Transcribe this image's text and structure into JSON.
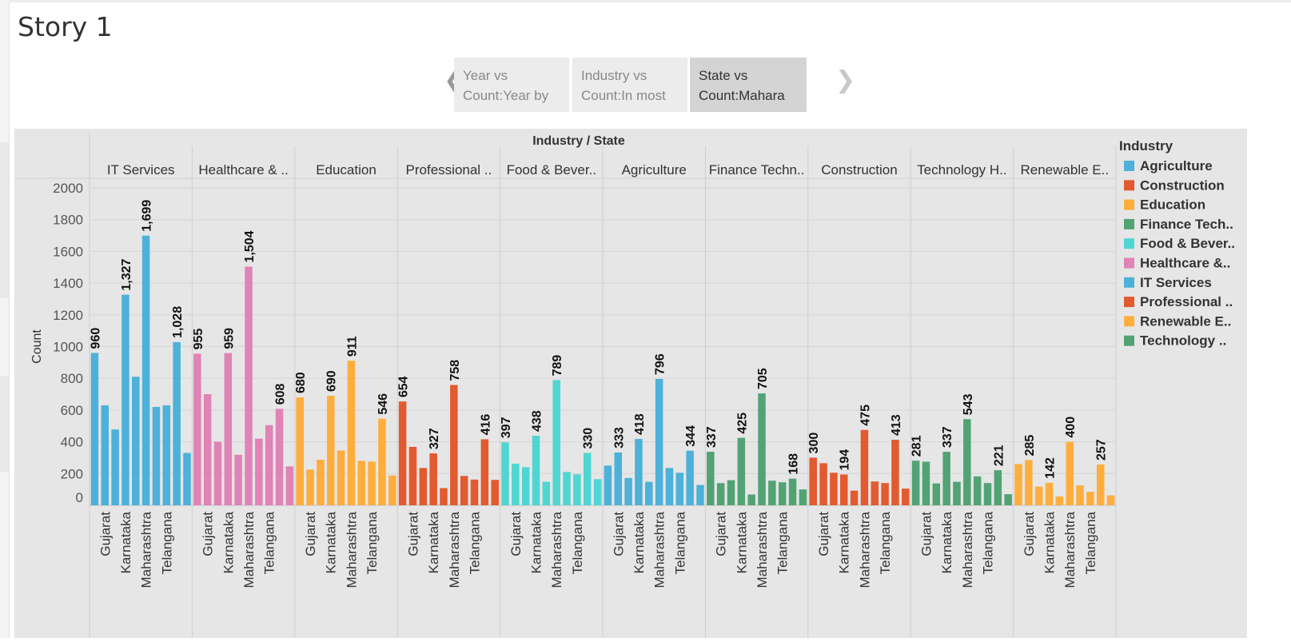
{
  "story": {
    "title": "Story 1",
    "tabs": [
      {
        "line1": "Year vs",
        "line2": "Count:Year by",
        "active": false
      },
      {
        "line1": "Industry vs",
        "line2": "Count:In most",
        "active": false
      },
      {
        "line1": "State vs",
        "line2": "Count:Mahara",
        "active": true
      }
    ],
    "prev_icon": "chevron-left-icon",
    "next_icon": "chevron-right-icon"
  },
  "chart_data": {
    "type": "bar",
    "column_header": "Industry  /  State",
    "ylabel": "Count",
    "ylim": [
      0,
      2000
    ],
    "yticks": [
      0,
      200,
      400,
      600,
      800,
      1000,
      1200,
      1400,
      1600,
      1800,
      2000
    ],
    "legend_title": "Industry",
    "legend_position": "right",
    "x_tick_labels": [
      "Gujarat",
      "Karnataka",
      "Maharashtra",
      "Telangana"
    ],
    "groups": [
      {
        "header": "IT Services",
        "industry": "IT Services",
        "color": "#4db1d9",
        "values": [
          960,
          630,
          478,
          1327,
          810,
          1699,
          620,
          630,
          1028,
          330
        ],
        "labels": [
          "960",
          "",
          "",
          "1,327",
          "",
          "1,699",
          "",
          "",
          "1,028",
          ""
        ]
      },
      {
        "header": "Healthcare & ..",
        "industry": "Healthcare &..",
        "color": "#e083b6",
        "values": [
          955,
          700,
          400,
          959,
          318,
          1504,
          420,
          505,
          608,
          245
        ],
        "labels": [
          "955",
          "",
          "",
          "959",
          "",
          "1,504",
          "",
          "",
          "608",
          ""
        ]
      },
      {
        "header": "Education",
        "industry": "Education",
        "color": "#ffad3c",
        "values": [
          680,
          225,
          287,
          690,
          345,
          911,
          280,
          275,
          546,
          188
        ],
        "labels": [
          "680",
          "",
          "",
          "690",
          "",
          "911",
          "",
          "",
          "546",
          ""
        ]
      },
      {
        "header": "Professional ..",
        "industry": "Professional ..",
        "color": "#e25a2f",
        "values": [
          654,
          368,
          235,
          327,
          108,
          758,
          185,
          162,
          416,
          160
        ],
        "labels": [
          "654",
          "",
          "",
          "327",
          "",
          "758",
          "",
          "",
          "416",
          ""
        ]
      },
      {
        "header": "Food & Bever..",
        "industry": "Food & Bever..",
        "color": "#4fd5d2",
        "values": [
          397,
          262,
          240,
          438,
          148,
          789,
          210,
          195,
          330,
          165
        ],
        "labels": [
          "397",
          "",
          "",
          "438",
          "",
          "789",
          "",
          "",
          "330",
          ""
        ]
      },
      {
        "header": "Agriculture",
        "industry": "Agriculture",
        "color": "#4db1d9",
        "values": [
          250,
          333,
          172,
          418,
          148,
          796,
          235,
          205,
          344,
          128
        ],
        "labels": [
          "",
          "333",
          "",
          "418",
          "",
          "796",
          "",
          "",
          "344",
          ""
        ]
      },
      {
        "header": "Finance Techn..",
        "industry": "Finance Tech..",
        "color": "#52a374",
        "values": [
          337,
          140,
          158,
          425,
          68,
          705,
          155,
          145,
          168,
          100
        ],
        "labels": [
          "337",
          "",
          "",
          "425",
          "",
          "705",
          "",
          "",
          "168",
          ""
        ]
      },
      {
        "header": "Construction",
        "industry": "Construction",
        "color": "#e25a2f",
        "values": [
          300,
          265,
          205,
          194,
          92,
          475,
          150,
          140,
          413,
          105
        ],
        "labels": [
          "300",
          "",
          "",
          "194",
          "",
          "475",
          "",
          "",
          "413",
          ""
        ]
      },
      {
        "header": "Technology H..",
        "industry": "Technology ..",
        "color": "#52a374",
        "values": [
          281,
          275,
          138,
          337,
          148,
          543,
          182,
          140,
          221,
          70
        ],
        "labels": [
          "281",
          "",
          "",
          "337",
          "",
          "543",
          "",
          "",
          "221",
          ""
        ]
      },
      {
        "header": "Renewable E..",
        "industry": "Renewable E..",
        "color": "#ffad3c",
        "values": [
          260,
          285,
          118,
          142,
          55,
          400,
          125,
          85,
          257,
          62
        ],
        "labels": [
          "",
          "285",
          "",
          "142",
          "",
          "400",
          "",
          "",
          "257",
          ""
        ]
      }
    ],
    "legend": [
      {
        "name": "Agriculture",
        "color": "#4db1d9"
      },
      {
        "name": "Construction",
        "color": "#e25a2f"
      },
      {
        "name": "Education",
        "color": "#ffad3c"
      },
      {
        "name": "Finance Tech..",
        "color": "#52a374"
      },
      {
        "name": "Food & Bever..",
        "color": "#4fd5d2"
      },
      {
        "name": "Healthcare &..",
        "color": "#e083b6"
      },
      {
        "name": "IT Services",
        "color": "#4db1d9"
      },
      {
        "name": "Professional ..",
        "color": "#e25a2f"
      },
      {
        "name": "Renewable E..",
        "color": "#ffad3c"
      },
      {
        "name": "Technology ..",
        "color": "#52a374"
      }
    ]
  }
}
